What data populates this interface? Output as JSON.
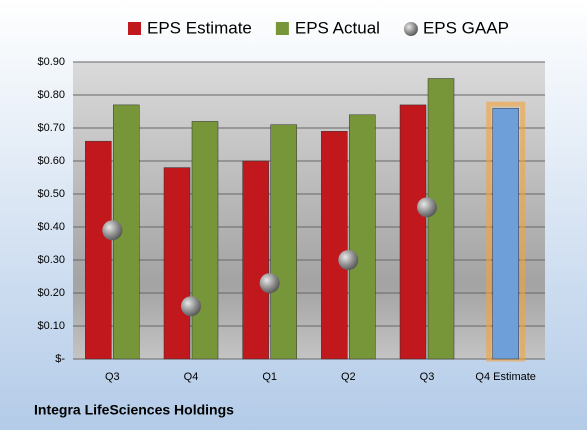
{
  "chart_data": {
    "type": "bar",
    "title": "Integra LifeSciences Holdings",
    "categories": [
      "Q3",
      "Q4",
      "Q1",
      "Q2",
      "Q3",
      "Q4 Estimate"
    ],
    "series": [
      {
        "name": "EPS Estimate",
        "color": "#c0181d",
        "values": [
          0.66,
          0.58,
          0.6,
          0.69,
          0.77,
          null
        ]
      },
      {
        "name": "EPS Actual",
        "color": "#77963a",
        "values": [
          0.77,
          0.72,
          0.71,
          0.74,
          0.85,
          null
        ]
      },
      {
        "name": "EPS GAAP",
        "color": "#8c8c8c",
        "values": [
          0.39,
          0.16,
          0.23,
          0.3,
          0.46,
          null
        ]
      },
      {
        "color": "#6f9fd8",
        "values": [
          null,
          null,
          null,
          null,
          null,
          0.76
        ]
      }
    ],
    "ylim": [
      0,
      0.9
    ],
    "yticks": [
      {
        "value": 0,
        "label": "$-"
      },
      {
        "value": 0.1,
        "label": "$0.10"
      },
      {
        "value": 0.2,
        "label": "$0.20"
      },
      {
        "value": 0.3,
        "label": "$0.30"
      },
      {
        "value": 0.4,
        "label": "$0.40"
      },
      {
        "value": 0.5,
        "label": "$0.50"
      },
      {
        "value": 0.6,
        "label": "$0.60"
      },
      {
        "value": 0.7,
        "label": "$0.70"
      },
      {
        "value": 0.8,
        "label": "$0.80"
      },
      {
        "value": 0.9,
        "label": "$0.90"
      }
    ],
    "grid": true
  }
}
